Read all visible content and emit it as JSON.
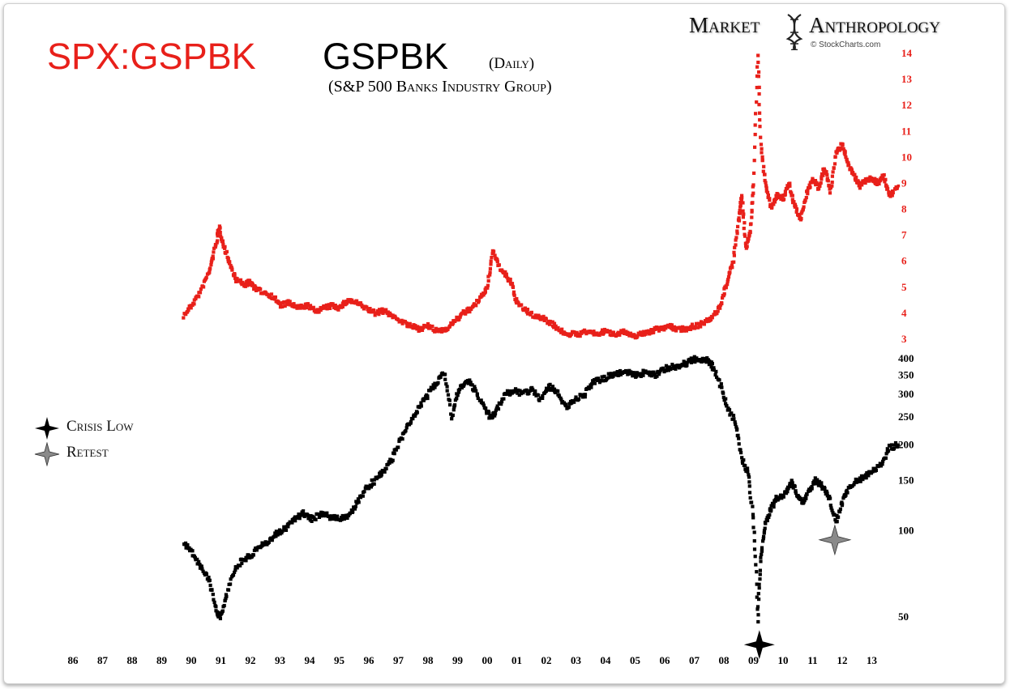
{
  "title": {
    "ratio": "SPX:GSPBK",
    "main": "GSPBK",
    "period": "(Daily)",
    "subtitle": "(S&P 500 Banks Industry Group)"
  },
  "brand": {
    "left": "Market",
    "right": "Anthropology",
    "credit": "© StockCharts.com"
  },
  "legend": {
    "crisis_low": "Crisis Low",
    "retest": "Retest"
  },
  "colors": {
    "ratio": "#e8201a",
    "price": "#000000",
    "retest_star": "#8a8a8a"
  },
  "chart_data": [
    {
      "type": "line",
      "name": "SPX:GSPBK",
      "x_start": 1989.75,
      "x_end": 2013.9,
      "y_axis": {
        "ticks": [
          3,
          4,
          5,
          6,
          7,
          8,
          9,
          10,
          11,
          12,
          13,
          14
        ],
        "scale": "linear",
        "ylim": [
          2.8,
          14.3
        ]
      },
      "points": [
        [
          1989.75,
          3.9
        ],
        [
          1990.0,
          4.3
        ],
        [
          1990.3,
          4.8
        ],
        [
          1990.6,
          5.6
        ],
        [
          1990.8,
          6.5
        ],
        [
          1990.95,
          7.3
        ],
        [
          1991.1,
          6.6
        ],
        [
          1991.3,
          5.9
        ],
        [
          1991.5,
          5.3
        ],
        [
          1991.8,
          5.1
        ],
        [
          1992.0,
          5.2
        ],
        [
          1992.2,
          4.9
        ],
        [
          1992.5,
          4.8
        ],
        [
          1992.8,
          4.6
        ],
        [
          1993.0,
          4.3
        ],
        [
          1993.3,
          4.4
        ],
        [
          1993.6,
          4.2
        ],
        [
          1993.9,
          4.3
        ],
        [
          1994.2,
          4.1
        ],
        [
          1994.5,
          4.2
        ],
        [
          1994.8,
          4.3
        ],
        [
          1995.0,
          4.2
        ],
        [
          1995.3,
          4.5
        ],
        [
          1995.6,
          4.4
        ],
        [
          1995.9,
          4.2
        ],
        [
          1996.2,
          4.0
        ],
        [
          1996.5,
          4.1
        ],
        [
          1996.8,
          3.9
        ],
        [
          1997.1,
          3.7
        ],
        [
          1997.4,
          3.5
        ],
        [
          1997.7,
          3.4
        ],
        [
          1998.0,
          3.5
        ],
        [
          1998.3,
          3.3
        ],
        [
          1998.6,
          3.4
        ],
        [
          1998.9,
          3.7
        ],
        [
          1999.2,
          4.0
        ],
        [
          1999.5,
          4.2
        ],
        [
          1999.8,
          4.6
        ],
        [
          2000.0,
          5.0
        ],
        [
          2000.2,
          6.4
        ],
        [
          2000.4,
          5.8
        ],
        [
          2000.6,
          5.5
        ],
        [
          2000.8,
          5.2
        ],
        [
          2001.0,
          4.4
        ],
        [
          2001.3,
          4.1
        ],
        [
          2001.6,
          3.9
        ],
        [
          2001.9,
          3.8
        ],
        [
          2002.2,
          3.6
        ],
        [
          2002.5,
          3.3
        ],
        [
          2002.8,
          3.2
        ],
        [
          2003.1,
          3.2
        ],
        [
          2003.4,
          3.3
        ],
        [
          2003.7,
          3.2
        ],
        [
          2004.0,
          3.3
        ],
        [
          2004.3,
          3.2
        ],
        [
          2004.6,
          3.3
        ],
        [
          2004.9,
          3.1
        ],
        [
          2005.2,
          3.2
        ],
        [
          2005.5,
          3.3
        ],
        [
          2005.8,
          3.4
        ],
        [
          2006.1,
          3.5
        ],
        [
          2006.4,
          3.4
        ],
        [
          2006.7,
          3.4
        ],
        [
          2007.0,
          3.5
        ],
        [
          2007.3,
          3.6
        ],
        [
          2007.6,
          3.8
        ],
        [
          2007.9,
          4.3
        ],
        [
          2008.1,
          5.2
        ],
        [
          2008.3,
          5.9
        ],
        [
          2008.5,
          7.5
        ],
        [
          2008.6,
          8.6
        ],
        [
          2008.75,
          6.5
        ],
        [
          2008.9,
          7.2
        ],
        [
          2009.0,
          9.0
        ],
        [
          2009.15,
          14.0
        ],
        [
          2009.25,
          10.5
        ],
        [
          2009.4,
          9.0
        ],
        [
          2009.6,
          8.0
        ],
        [
          2009.8,
          8.6
        ],
        [
          2010.0,
          8.4
        ],
        [
          2010.2,
          9.0
        ],
        [
          2010.4,
          8.1
        ],
        [
          2010.6,
          7.6
        ],
        [
          2010.8,
          8.6
        ],
        [
          2011.0,
          9.2
        ],
        [
          2011.2,
          8.8
        ],
        [
          2011.4,
          9.6
        ],
        [
          2011.6,
          8.7
        ],
        [
          2011.8,
          10.2
        ],
        [
          2012.0,
          10.5
        ],
        [
          2012.2,
          9.7
        ],
        [
          2012.4,
          9.3
        ],
        [
          2012.6,
          8.9
        ],
        [
          2012.8,
          9.1
        ],
        [
          2013.0,
          9.2
        ],
        [
          2013.2,
          9.0
        ],
        [
          2013.4,
          9.3
        ],
        [
          2013.6,
          8.5
        ],
        [
          2013.9,
          8.9
        ]
      ]
    },
    {
      "type": "line",
      "name": "GSPBK",
      "x_start": 1989.75,
      "x_end": 2013.9,
      "y_axis": {
        "ticks": [
          50,
          100,
          150,
          200,
          250,
          300,
          350,
          400
        ],
        "scale": "log",
        "ylim": [
          44,
          420
        ]
      },
      "points": [
        [
          1989.75,
          90
        ],
        [
          1990.0,
          85
        ],
        [
          1990.3,
          75
        ],
        [
          1990.6,
          68
        ],
        [
          1990.85,
          52
        ],
        [
          1991.0,
          50
        ],
        [
          1991.2,
          60
        ],
        [
          1991.5,
          75
        ],
        [
          1991.8,
          80
        ],
        [
          1992.0,
          82
        ],
        [
          1992.3,
          88
        ],
        [
          1992.6,
          92
        ],
        [
          1992.9,
          98
        ],
        [
          1993.2,
          102
        ],
        [
          1993.5,
          110
        ],
        [
          1993.8,
          115
        ],
        [
          1994.1,
          110
        ],
        [
          1994.4,
          115
        ],
        [
          1994.7,
          112
        ],
        [
          1995.0,
          110
        ],
        [
          1995.3,
          112
        ],
        [
          1995.6,
          125
        ],
        [
          1995.9,
          140
        ],
        [
          1996.2,
          150
        ],
        [
          1996.5,
          160
        ],
        [
          1996.8,
          180
        ],
        [
          1997.1,
          210
        ],
        [
          1997.4,
          240
        ],
        [
          1997.7,
          270
        ],
        [
          1998.0,
          300
        ],
        [
          1998.3,
          330
        ],
        [
          1998.55,
          360
        ],
        [
          1998.8,
          250
        ],
        [
          1999.0,
          300
        ],
        [
          1999.3,
          340
        ],
        [
          1999.6,
          310
        ],
        [
          1999.9,
          270
        ],
        [
          2000.1,
          250
        ],
        [
          2000.3,
          260
        ],
        [
          2000.6,
          300
        ],
        [
          2000.9,
          310
        ],
        [
          2001.2,
          300
        ],
        [
          2001.5,
          310
        ],
        [
          2001.8,
          290
        ],
        [
          2002.1,
          320
        ],
        [
          2002.4,
          300
        ],
        [
          2002.7,
          270
        ],
        [
          2003.0,
          290
        ],
        [
          2003.3,
          300
        ],
        [
          2003.6,
          330
        ],
        [
          2003.9,
          340
        ],
        [
          2004.2,
          350
        ],
        [
          2004.5,
          360
        ],
        [
          2004.8,
          355
        ],
        [
          2005.1,
          350
        ],
        [
          2005.4,
          360
        ],
        [
          2005.7,
          350
        ],
        [
          2006.0,
          370
        ],
        [
          2006.3,
          375
        ],
        [
          2006.6,
          380
        ],
        [
          2006.9,
          395
        ],
        [
          2007.1,
          400
        ],
        [
          2007.4,
          395
        ],
        [
          2007.6,
          380
        ],
        [
          2007.9,
          320
        ],
        [
          2008.1,
          270
        ],
        [
          2008.4,
          240
        ],
        [
          2008.6,
          180
        ],
        [
          2008.8,
          160
        ],
        [
          2009.0,
          110
        ],
        [
          2009.15,
          48
        ],
        [
          2009.25,
          80
        ],
        [
          2009.4,
          105
        ],
        [
          2009.6,
          120
        ],
        [
          2009.8,
          130
        ],
        [
          2010.1,
          135
        ],
        [
          2010.3,
          150
        ],
        [
          2010.5,
          130
        ],
        [
          2010.7,
          125
        ],
        [
          2010.9,
          140
        ],
        [
          2011.1,
          150
        ],
        [
          2011.3,
          145
        ],
        [
          2011.5,
          135
        ],
        [
          2011.8,
          108
        ],
        [
          2012.0,
          125
        ],
        [
          2012.2,
          140
        ],
        [
          2012.5,
          150
        ],
        [
          2012.8,
          155
        ],
        [
          2013.0,
          160
        ],
        [
          2013.3,
          170
        ],
        [
          2013.6,
          195
        ],
        [
          2013.9,
          200
        ]
      ],
      "markers": [
        {
          "label": "Crisis Low",
          "x": 2009.2,
          "y": 40
        },
        {
          "label": "Retest",
          "x": 2011.75,
          "y": 93
        }
      ]
    }
  ],
  "x_axis": {
    "ticks": [
      "86",
      "87",
      "88",
      "89",
      "90",
      "91",
      "92",
      "93",
      "94",
      "95",
      "96",
      "97",
      "98",
      "99",
      "00",
      "01",
      "02",
      "03",
      "04",
      "05",
      "06",
      "07",
      "08",
      "09",
      "10",
      "11",
      "12",
      "13"
    ]
  }
}
